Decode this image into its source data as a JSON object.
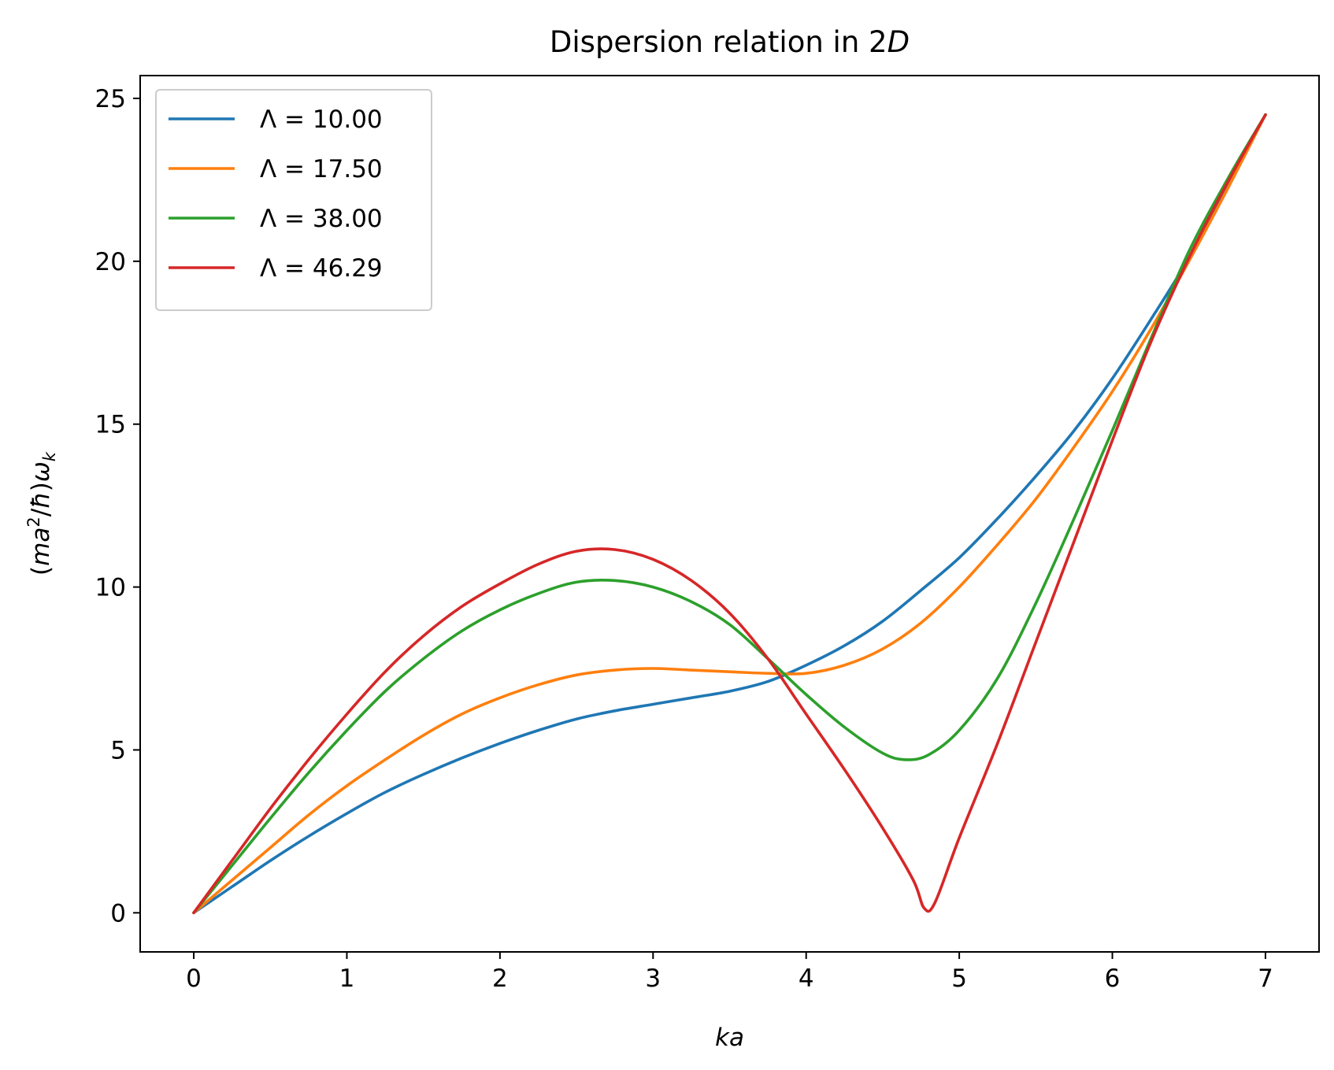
{
  "chart_data": {
    "type": "line",
    "title": "Dispersion relation in 2D",
    "title_parts": [
      "Dispersion relation in 2",
      "D"
    ],
    "xlabel": "ka",
    "ylabel": "(ma²/ħ)ωk",
    "ylabel_parts": [
      "(",
      "ma",
      "2",
      "/",
      "ħ",
      ")",
      "ω",
      "k"
    ],
    "xlim": [
      -0.35,
      7.35
    ],
    "ylim": [
      -1.2,
      25.7
    ],
    "xticks": [
      0,
      1,
      2,
      3,
      4,
      5,
      6,
      7
    ],
    "yticks": [
      0,
      5,
      10,
      15,
      20,
      25
    ],
    "grid": false,
    "legend_position": "upper left",
    "series": [
      {
        "name": "Λ = 10.00",
        "color": "#1f77b4",
        "points": [
          [
            0,
            0
          ],
          [
            0.25,
            0.8
          ],
          [
            0.5,
            1.6
          ],
          [
            0.75,
            2.35
          ],
          [
            1.0,
            3.05
          ],
          [
            1.25,
            3.7
          ],
          [
            1.5,
            4.25
          ],
          [
            1.75,
            4.75
          ],
          [
            2.0,
            5.2
          ],
          [
            2.25,
            5.6
          ],
          [
            2.5,
            5.95
          ],
          [
            2.75,
            6.2
          ],
          [
            3.0,
            6.4
          ],
          [
            3.25,
            6.6
          ],
          [
            3.5,
            6.8
          ],
          [
            3.75,
            7.1
          ],
          [
            4.0,
            7.6
          ],
          [
            4.25,
            8.2
          ],
          [
            4.5,
            8.95
          ],
          [
            4.75,
            9.9
          ],
          [
            5.0,
            10.9
          ],
          [
            5.25,
            12.1
          ],
          [
            5.5,
            13.4
          ],
          [
            5.75,
            14.8
          ],
          [
            6.0,
            16.4
          ],
          [
            6.25,
            18.2
          ],
          [
            6.5,
            20.1
          ],
          [
            6.75,
            22.3
          ],
          [
            7.0,
            24.5
          ]
        ]
      },
      {
        "name": "Λ = 17.50",
        "color": "#ff7f0e",
        "points": [
          [
            0,
            0
          ],
          [
            0.25,
            1.0
          ],
          [
            0.5,
            2.0
          ],
          [
            0.75,
            3.0
          ],
          [
            1.0,
            3.9
          ],
          [
            1.25,
            4.7
          ],
          [
            1.5,
            5.45
          ],
          [
            1.75,
            6.1
          ],
          [
            2.0,
            6.6
          ],
          [
            2.25,
            7.0
          ],
          [
            2.5,
            7.3
          ],
          [
            2.75,
            7.45
          ],
          [
            3.0,
            7.5
          ],
          [
            3.25,
            7.45
          ],
          [
            3.5,
            7.4
          ],
          [
            3.75,
            7.35
          ],
          [
            4.0,
            7.35
          ],
          [
            4.25,
            7.6
          ],
          [
            4.5,
            8.1
          ],
          [
            4.75,
            8.9
          ],
          [
            5.0,
            10.0
          ],
          [
            5.25,
            11.3
          ],
          [
            5.5,
            12.7
          ],
          [
            5.75,
            14.3
          ],
          [
            6.0,
            16.0
          ],
          [
            6.25,
            17.9
          ],
          [
            6.5,
            20.0
          ],
          [
            6.75,
            22.2
          ],
          [
            7.0,
            24.5
          ]
        ]
      },
      {
        "name": "Λ = 38.00",
        "color": "#2ca02c",
        "points": [
          [
            0,
            0
          ],
          [
            0.25,
            1.45
          ],
          [
            0.5,
            2.9
          ],
          [
            0.75,
            4.3
          ],
          [
            1.0,
            5.6
          ],
          [
            1.25,
            6.8
          ],
          [
            1.5,
            7.8
          ],
          [
            1.75,
            8.65
          ],
          [
            2.0,
            9.3
          ],
          [
            2.25,
            9.8
          ],
          [
            2.5,
            10.15
          ],
          [
            2.75,
            10.2
          ],
          [
            3.0,
            10.0
          ],
          [
            3.25,
            9.55
          ],
          [
            3.5,
            8.85
          ],
          [
            3.75,
            7.8
          ],
          [
            4.0,
            6.7
          ],
          [
            4.25,
            5.7
          ],
          [
            4.5,
            4.9
          ],
          [
            4.65,
            4.7
          ],
          [
            4.8,
            4.85
          ],
          [
            5.0,
            5.6
          ],
          [
            5.25,
            7.2
          ],
          [
            5.5,
            9.5
          ],
          [
            5.75,
            12.1
          ],
          [
            6.0,
            14.8
          ],
          [
            6.25,
            17.6
          ],
          [
            6.5,
            20.3
          ],
          [
            6.75,
            22.5
          ],
          [
            7.0,
            24.5
          ]
        ]
      },
      {
        "name": "Λ = 46.29",
        "color": "#d62728",
        "points": [
          [
            0,
            0
          ],
          [
            0.25,
            1.6
          ],
          [
            0.5,
            3.2
          ],
          [
            0.75,
            4.7
          ],
          [
            1.0,
            6.1
          ],
          [
            1.25,
            7.4
          ],
          [
            1.5,
            8.5
          ],
          [
            1.75,
            9.4
          ],
          [
            2.0,
            10.1
          ],
          [
            2.25,
            10.7
          ],
          [
            2.5,
            11.1
          ],
          [
            2.75,
            11.15
          ],
          [
            3.0,
            10.85
          ],
          [
            3.25,
            10.2
          ],
          [
            3.5,
            9.2
          ],
          [
            3.75,
            7.8
          ],
          [
            4.0,
            6.1
          ],
          [
            4.25,
            4.4
          ],
          [
            4.5,
            2.6
          ],
          [
            4.7,
            1.0
          ],
          [
            4.77,
            0.15
          ],
          [
            4.84,
            0.3
          ],
          [
            5.0,
            2.3
          ],
          [
            5.25,
            5.2
          ],
          [
            5.5,
            8.3
          ],
          [
            5.75,
            11.4
          ],
          [
            6.0,
            14.5
          ],
          [
            6.25,
            17.5
          ],
          [
            6.5,
            20.1
          ],
          [
            6.75,
            22.4
          ],
          [
            7.0,
            24.5
          ]
        ]
      }
    ]
  }
}
